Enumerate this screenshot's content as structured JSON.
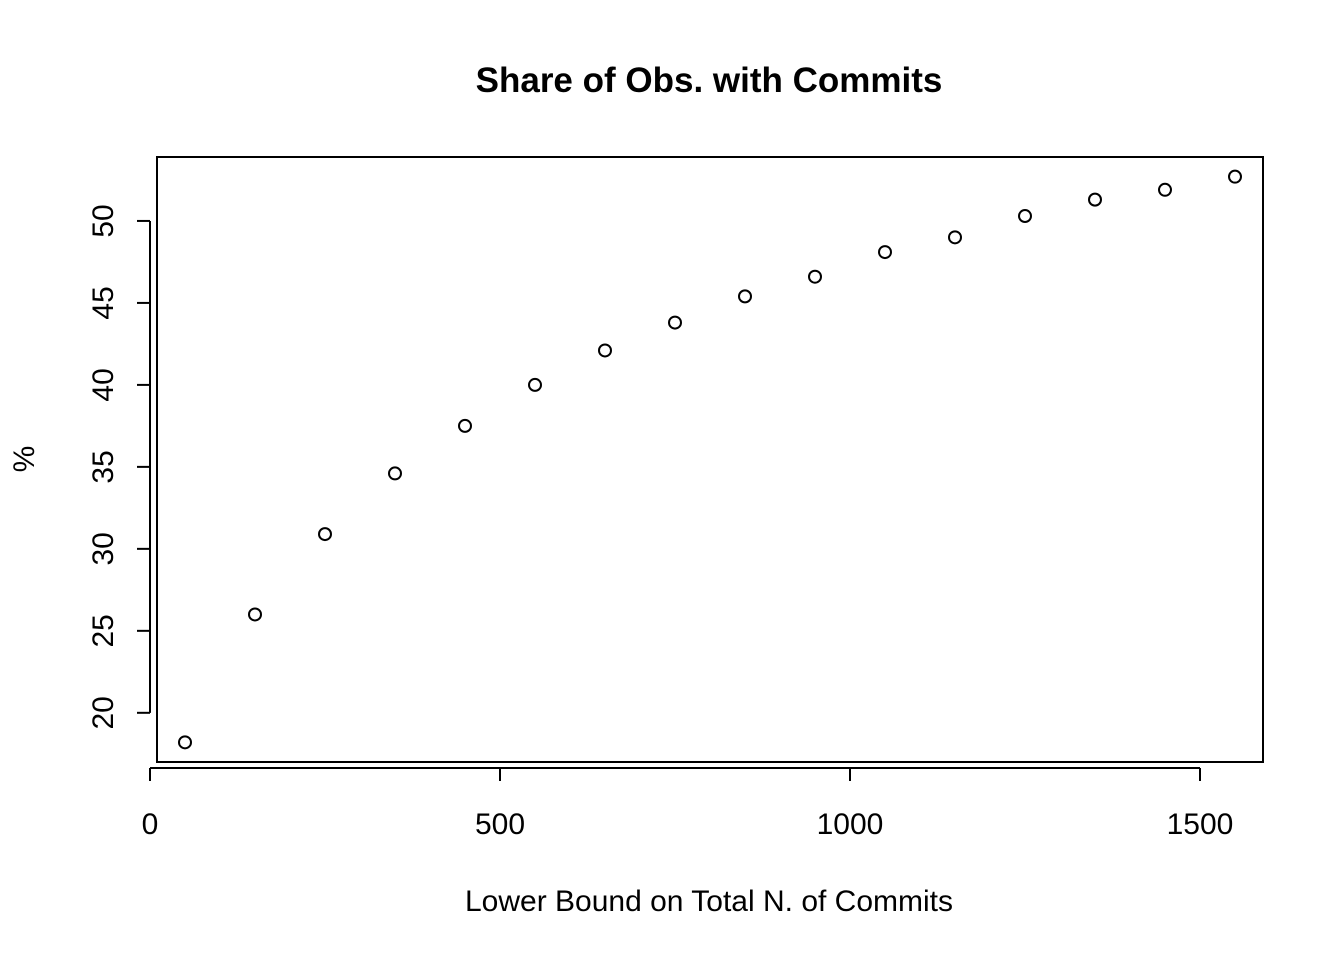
{
  "chart_data": {
    "type": "scatter",
    "title": "Share of Obs. with Commits",
    "xlabel": "Lower Bound on Total N. of Commits",
    "ylabel": "%",
    "xlim": [
      10,
      1590
    ],
    "ylim": [
      17,
      53.9
    ],
    "x_ticks": [
      0,
      500,
      1000,
      1500
    ],
    "x_tick_labels": [
      "0",
      "500",
      "1000",
      "1500"
    ],
    "y_ticks": [
      20,
      25,
      30,
      35,
      40,
      45,
      50
    ],
    "y_tick_labels": [
      "20",
      "25",
      "30",
      "35",
      "40",
      "45",
      "50"
    ],
    "grid": false,
    "legend": "none",
    "marker": "open-circle",
    "marker_color": "#000000",
    "series": [
      {
        "x": [
          50,
          150,
          250,
          350,
          450,
          550,
          650,
          750,
          850,
          950,
          1050,
          1150,
          1250,
          1350,
          1450,
          1550
        ],
        "y": [
          18.2,
          26.0,
          30.9,
          34.6,
          37.5,
          40.0,
          42.1,
          43.8,
          45.4,
          46.6,
          48.1,
          49.0,
          50.3,
          51.3,
          51.9,
          52.7
        ]
      }
    ]
  }
}
